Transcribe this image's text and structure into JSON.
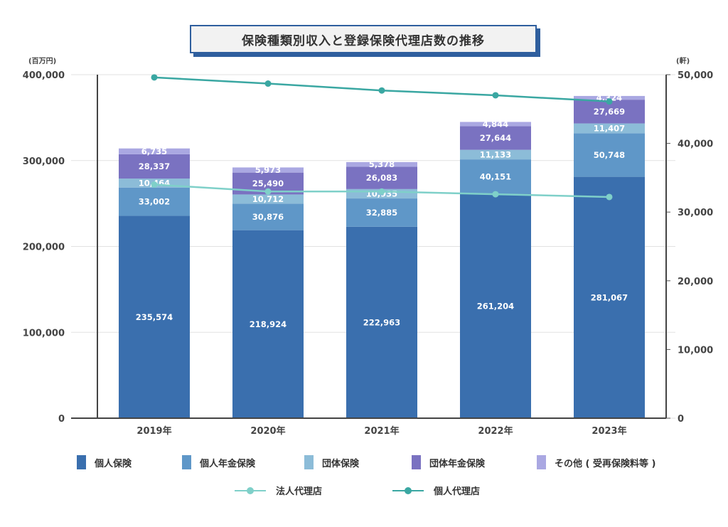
{
  "title": "保険種類別収入と登録保険代理店数の推移",
  "left_unit": "(百万円)",
  "right_unit": "(軒)",
  "colors": {
    "個人保険": "#3a6fae",
    "個人年金保険": "#5f97c8",
    "団体保険": "#8cbcd8",
    "団体年金保険": "#7a72c1",
    "その他": "#aaa8e2",
    "法人代理店": "#7fd0c9",
    "個人代理店": "#3aa7a2"
  },
  "legend": {
    "bars": [
      "個人保険",
      "個人年金保険",
      "団体保険",
      "団体年金保険",
      "その他 ( 受再保険料等 )"
    ],
    "lines": [
      "法人代理店",
      "個人代理店"
    ]
  },
  "chart_data": {
    "type": "bar",
    "stacked": true,
    "categories": [
      "2019年",
      "2020年",
      "2021年",
      "2022年",
      "2023年"
    ],
    "series": [
      {
        "name": "個人保険",
        "values": [
          235574,
          218924,
          222963,
          261204,
          281067
        ],
        "labels": [
          "235,574",
          "218,924",
          "222,963",
          "261,204",
          "281,067"
        ]
      },
      {
        "name": "個人年金保険",
        "values": [
          33002,
          30876,
          32885,
          40151,
          50748
        ],
        "labels": [
          "33,002",
          "30,876",
          "32,885",
          "40,151",
          "50,748"
        ]
      },
      {
        "name": "団体保険",
        "values": [
          10464,
          10712,
          10935,
          11133,
          11407
        ],
        "labels": [
          "10,464",
          "10,712",
          "10,935",
          "11,133",
          "11,407"
        ]
      },
      {
        "name": "団体年金保険",
        "values": [
          28337,
          25490,
          26083,
          27644,
          27669
        ],
        "labels": [
          "28,337",
          "25,490",
          "26,083",
          "27,644",
          "27,669"
        ]
      },
      {
        "name": "その他 ( 受再保険料等 )",
        "values": [
          6735,
          5973,
          5378,
          4844,
          4324
        ],
        "labels": [
          "6,735",
          "5,973",
          "5,378",
          "4,844",
          "4,324"
        ]
      }
    ],
    "line_series": [
      {
        "name": "法人代理店",
        "axis": "right",
        "values": [
          34000,
          33000,
          33000,
          32600,
          32200
        ]
      },
      {
        "name": "個人代理店",
        "axis": "right",
        "values": [
          49600,
          48700,
          47700,
          47000,
          46100
        ]
      }
    ],
    "y_left": {
      "min": 0,
      "max": 400000,
      "ticks": [
        "0",
        "100,000",
        "200,000",
        "300,000",
        "400,000"
      ]
    },
    "y_right": {
      "min": 0,
      "max": 50000,
      "ticks": [
        "0",
        "10,000",
        "20,000",
        "30,000",
        "40,000",
        "50,000"
      ]
    },
    "grid": true,
    "legend_position": "bottom"
  }
}
